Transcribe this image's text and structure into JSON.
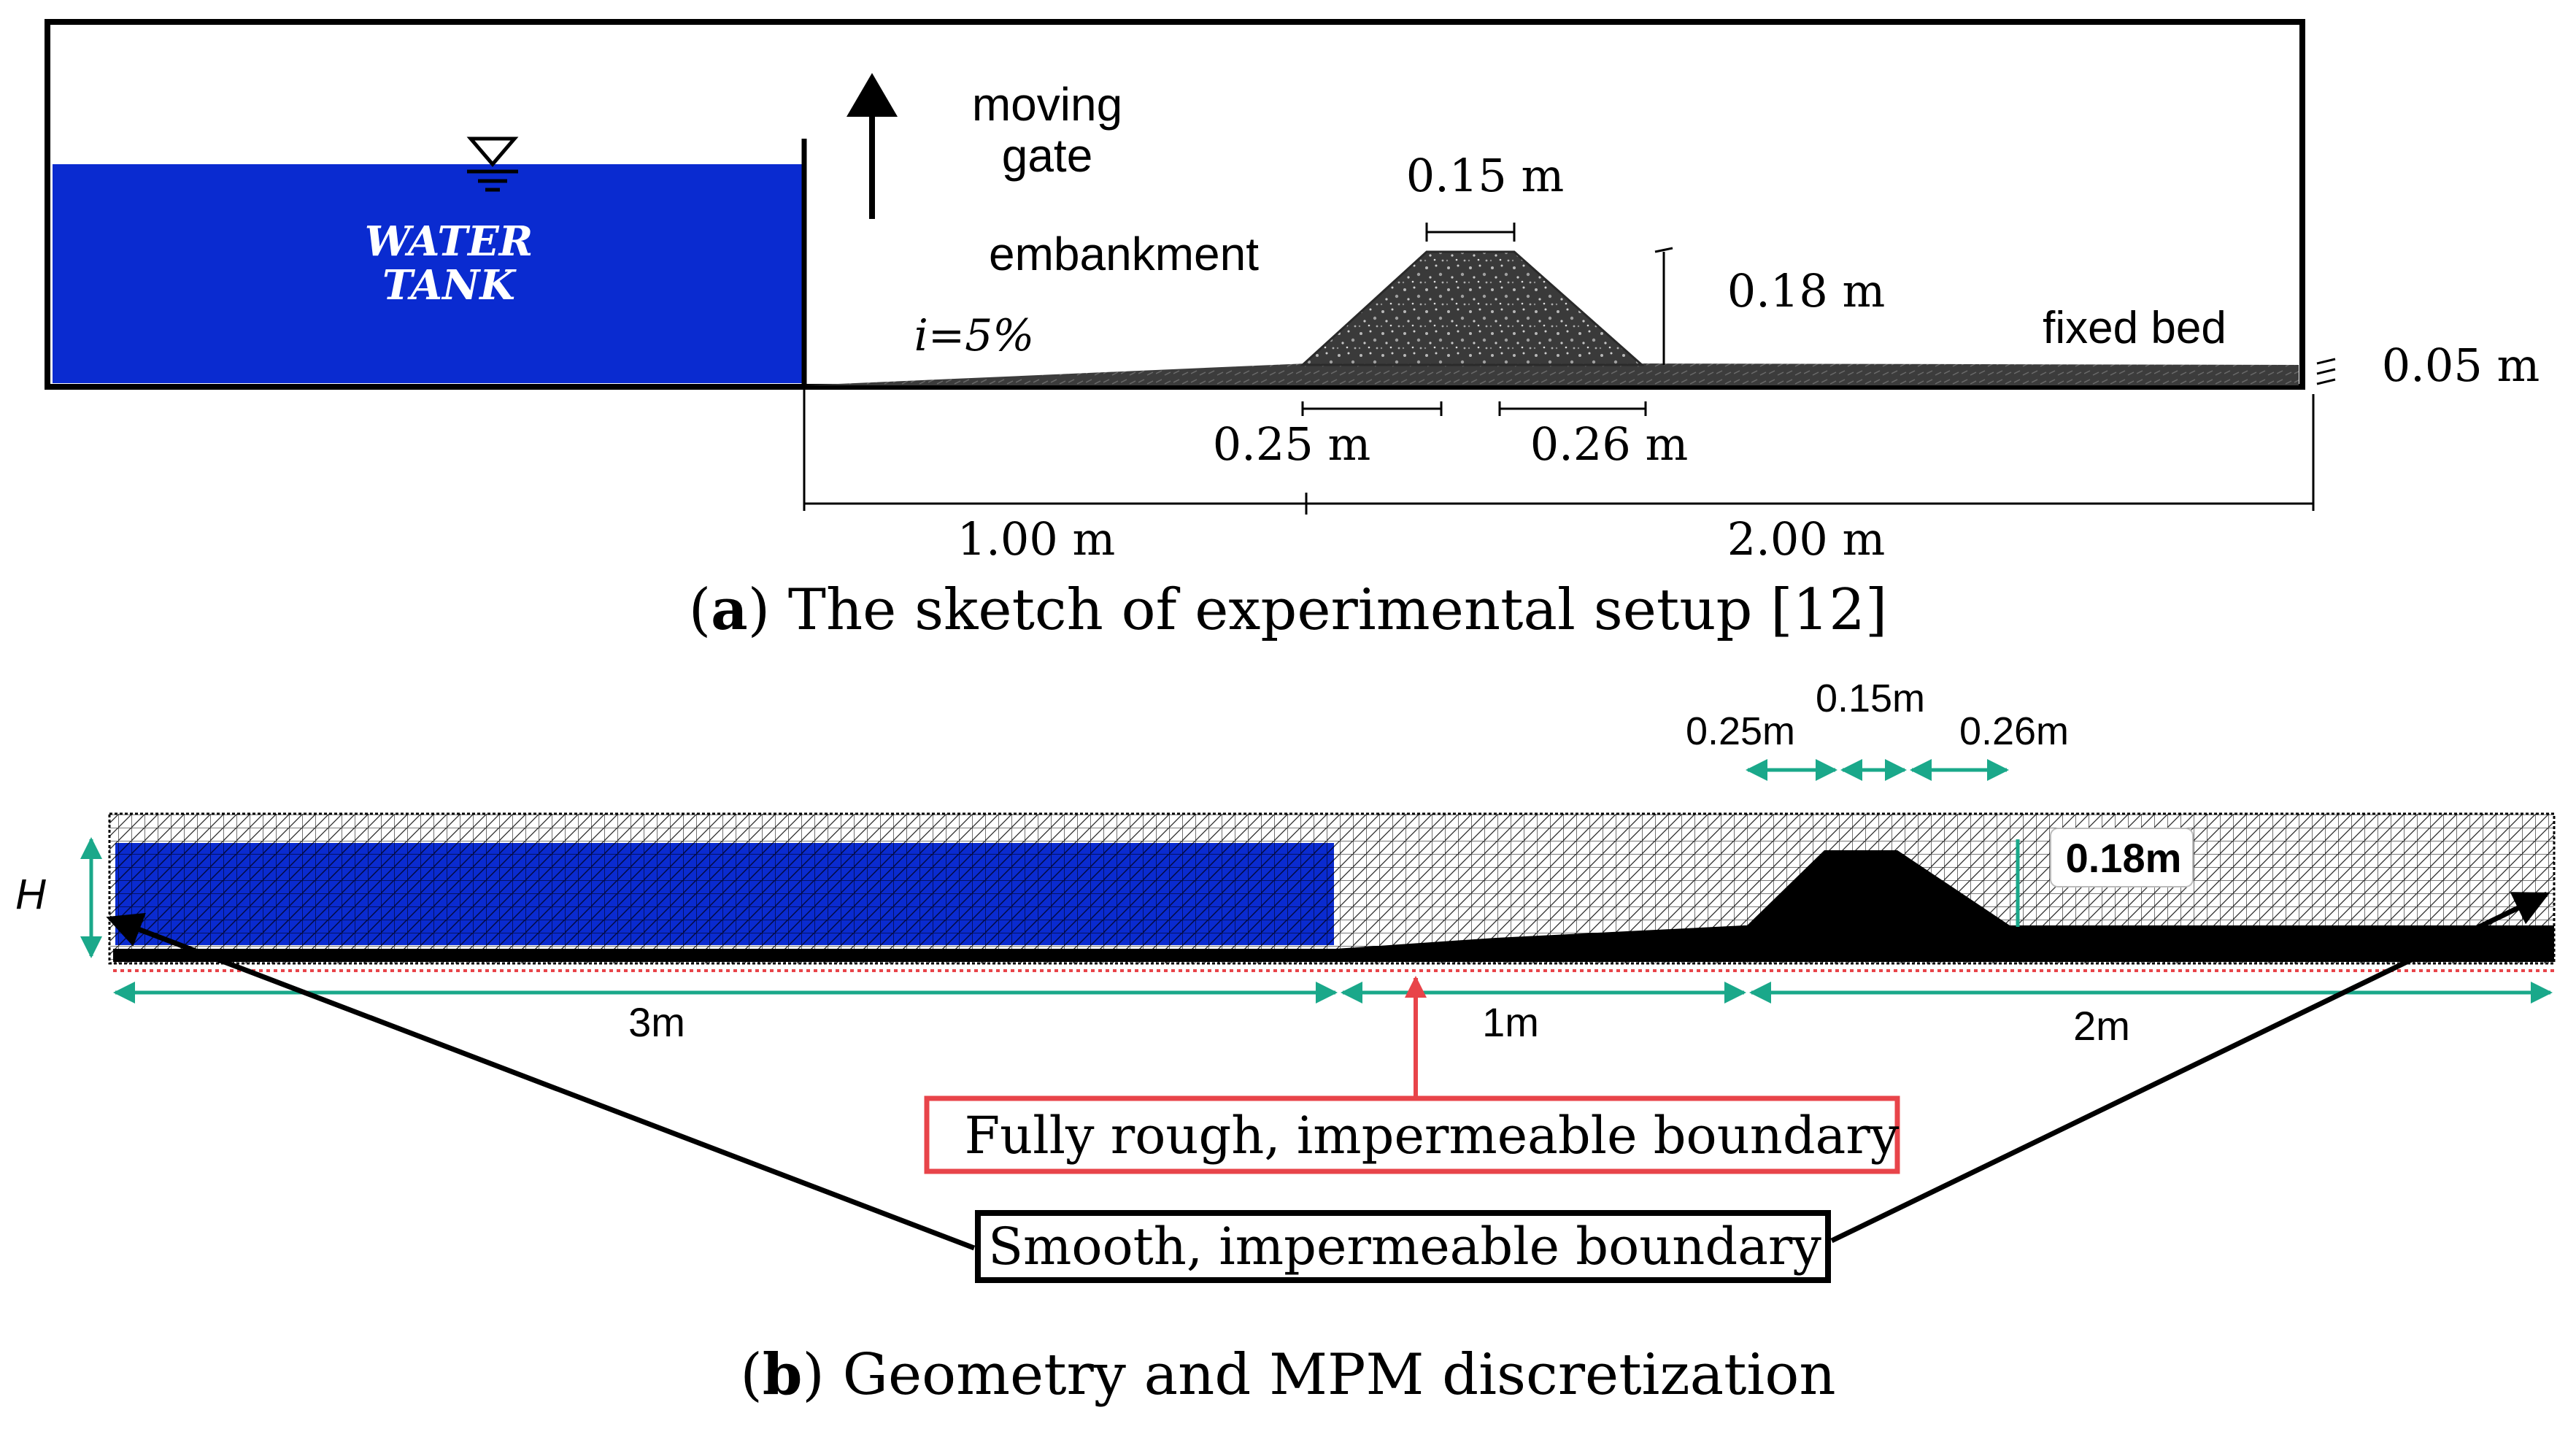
{
  "panel_a": {
    "water_tank_line1": "WATER",
    "water_tank_line2": "TANK",
    "gate_line1": "moving",
    "gate_line2": "gate",
    "embankment": "embankment",
    "slope": "i=5%",
    "top_width": "0.15 m",
    "height": "0.18 m",
    "fixed_bed": "fixed bed",
    "bed_thickness": "0.05 m",
    "left_base": "0.25 m",
    "right_base": "0.26 m",
    "dist_1": "1.00 m",
    "dist_2": "2.00 m",
    "caption_letter": "a",
    "caption_text": "The sketch of experimental setup [12]"
  },
  "panel_b": {
    "dim_left": "0.25m",
    "dim_top": "0.15m",
    "dim_right": "0.26m",
    "height_label": "0.18m",
    "h_label": "H",
    "len_3": "3m",
    "len_1": "1m",
    "len_2": "2m",
    "rough_boundary": "Fully rough, impermeable boundary",
    "smooth_boundary": "Smooth, impermeable boundary",
    "caption_letter": "b",
    "caption_text": "Geometry and MPM discretization"
  },
  "colors": {
    "water": "#0a2bd0",
    "dim_green": "#1aa88a",
    "rough_red": "#e8444a",
    "dark": "#1e1e1e"
  }
}
